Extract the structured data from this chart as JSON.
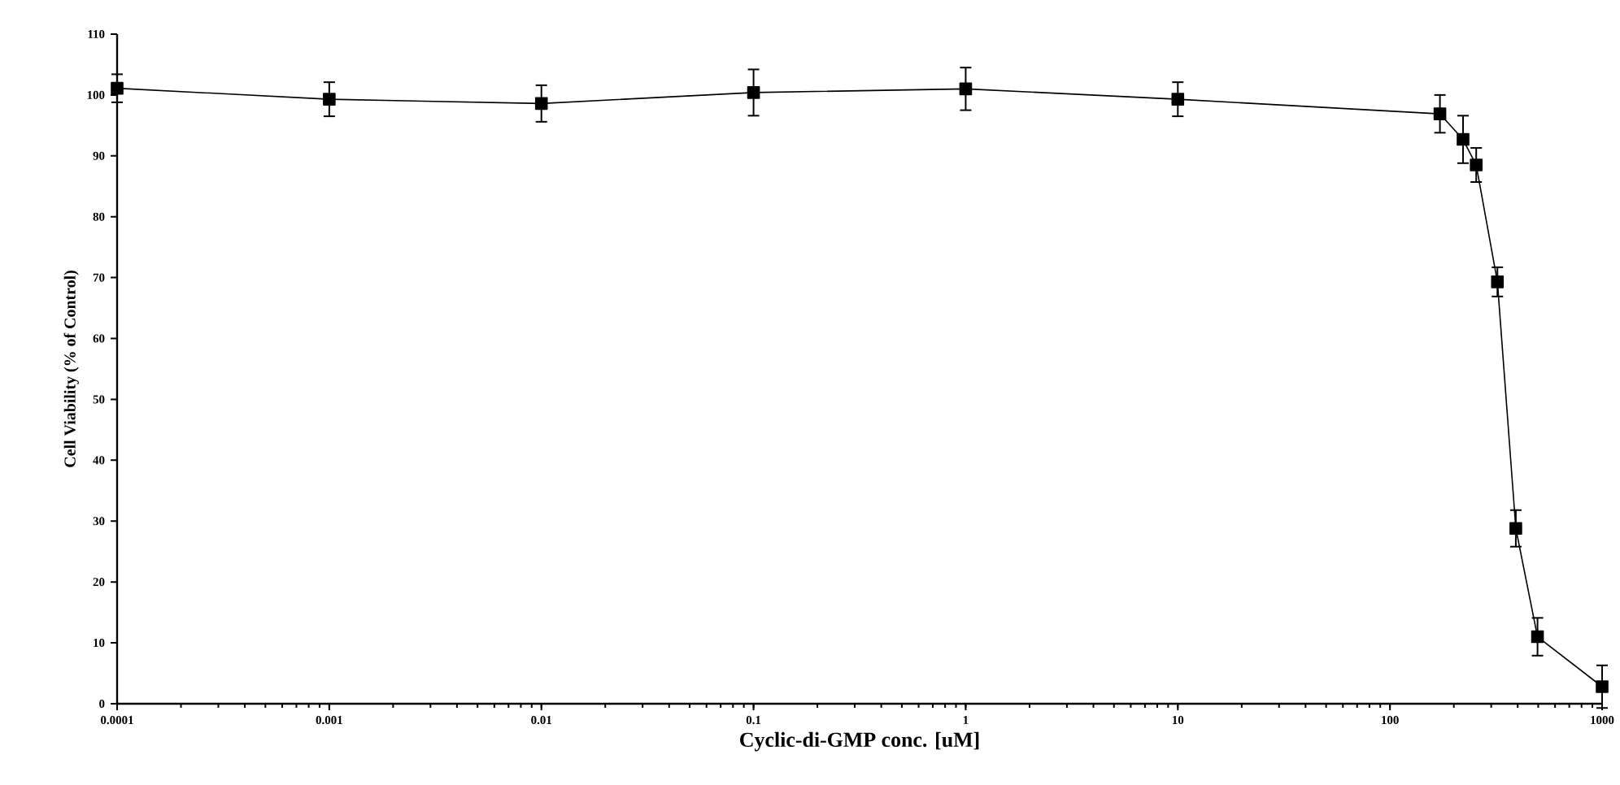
{
  "chart_data": {
    "type": "line",
    "xlabel": "Cyclic-di-GMP conc. [uM]",
    "ylabel": "Cell Viability (%  of Control)",
    "x": [
      0.0001,
      0.001,
      0.01,
      0.1,
      1,
      10,
      172,
      221,
      255,
      321,
      392,
      496,
      1000
    ],
    "values": [
      101.1,
      99.3,
      98.6,
      100.4,
      101.0,
      99.3,
      96.9,
      92.7,
      88.5,
      69.3,
      28.8,
      11.0,
      2.8
    ],
    "errors": [
      2.3,
      2.8,
      3.0,
      3.8,
      3.5,
      2.8,
      3.1,
      3.9,
      2.8,
      2.4,
      3.0,
      3.1,
      3.5
    ],
    "color": "#000000",
    "marker": "square",
    "line_style": "solid",
    "log": "x",
    "grid": false,
    "xlim": [
      0.0001,
      1000
    ],
    "ylim": [
      0,
      110
    ],
    "xticks": [
      0.0001,
      0.001,
      0.01,
      0.1,
      1,
      10,
      100,
      1000
    ],
    "yticks": [
      0,
      10,
      20,
      30,
      40,
      50,
      60,
      70,
      80,
      90,
      100,
      110
    ]
  }
}
